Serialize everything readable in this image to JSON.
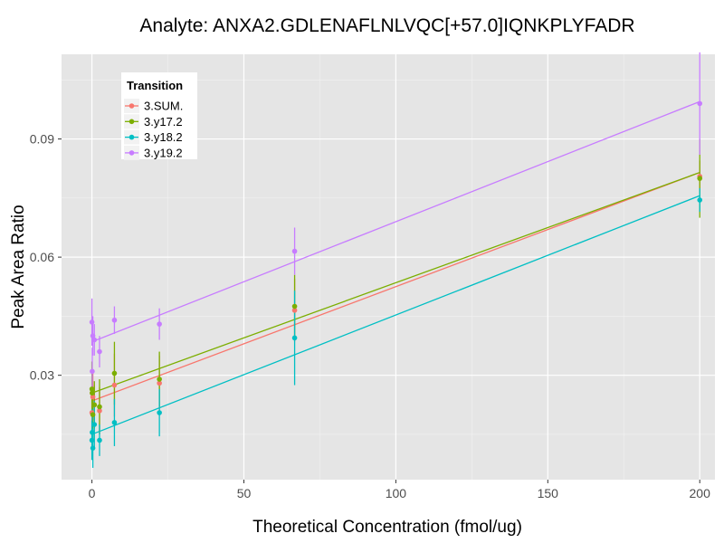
{
  "chart_data": {
    "type": "scatter",
    "title": "Analyte: ANXA2.GDLENAFLNLVQC[+57.0]IQNKPLYFADR",
    "xlabel": "Theoretical Concentration (fmol/ug)",
    "ylabel": "Peak Area Ratio",
    "xlim": [
      -10,
      205
    ],
    "ylim": [
      0.0035,
      0.1115
    ],
    "x_ticks": [
      0,
      50,
      100,
      150,
      200
    ],
    "x_tick_labels": [
      "0",
      "50",
      "100",
      "150",
      "200"
    ],
    "y_ticks": [
      0.03,
      0.06,
      0.09
    ],
    "y_tick_labels": [
      "0.03",
      "0.06",
      "0.09"
    ],
    "grid": true,
    "legend": {
      "title": "Transition",
      "position": "top-left"
    },
    "series": [
      {
        "name": "3.SUM.",
        "color": "#F8766D",
        "points": [
          {
            "x": 0,
            "y": 0.0205,
            "err": 0.006
          },
          {
            "x": 0.1,
            "y": 0.0255,
            "err": 0.005
          },
          {
            "x": 0.3,
            "y": 0.0245,
            "err": 0.006
          },
          {
            "x": 0.8,
            "y": 0.0225,
            "err": 0.005
          },
          {
            "x": 2.5,
            "y": 0.021,
            "err": 0.006
          },
          {
            "x": 7.4,
            "y": 0.0275,
            "err": 0.008
          },
          {
            "x": 22.2,
            "y": 0.028,
            "err": 0.007
          },
          {
            "x": 66.7,
            "y": 0.0465,
            "err": 0.008
          },
          {
            "x": 200,
            "y": 0.0805,
            "err": 0.004
          }
        ],
        "fit": {
          "intercept": 0.0235,
          "slope": 0.00029
        }
      },
      {
        "name": "3.y17.2",
        "color": "#7CAE00",
        "points": [
          {
            "x": 0,
            "y": 0.0265,
            "err": 0.007
          },
          {
            "x": 0.1,
            "y": 0.0255,
            "err": 0.006
          },
          {
            "x": 0.3,
            "y": 0.02,
            "err": 0.007
          },
          {
            "x": 0.8,
            "y": 0.0225,
            "err": 0.006
          },
          {
            "x": 2.5,
            "y": 0.022,
            "err": 0.007
          },
          {
            "x": 7.4,
            "y": 0.0305,
            "err": 0.008
          },
          {
            "x": 22.2,
            "y": 0.029,
            "err": 0.007
          },
          {
            "x": 66.7,
            "y": 0.0475,
            "err": 0.008
          },
          {
            "x": 200,
            "y": 0.08,
            "err": 0.01
          }
        ],
        "fit": {
          "intercept": 0.0255,
          "slope": 0.00028
        }
      },
      {
        "name": "3.y18.2",
        "color": "#00BFC4",
        "points": [
          {
            "x": 0,
            "y": 0.0135,
            "err": 0.005
          },
          {
            "x": 0.1,
            "y": 0.0155,
            "err": 0.006
          },
          {
            "x": 0.3,
            "y": 0.0115,
            "err": 0.005
          },
          {
            "x": 0.8,
            "y": 0.0175,
            "err": 0.006
          },
          {
            "x": 2.5,
            "y": 0.0135,
            "err": 0.004
          },
          {
            "x": 7.4,
            "y": 0.018,
            "err": 0.006
          },
          {
            "x": 22.2,
            "y": 0.0205,
            "err": 0.006
          },
          {
            "x": 66.7,
            "y": 0.0395,
            "err": 0.012
          },
          {
            "x": 200,
            "y": 0.0745,
            "err": 0.003
          }
        ],
        "fit": {
          "intercept": 0.015,
          "slope": 0.000303
        }
      },
      {
        "name": "3.y19.2",
        "color": "#C77CFF",
        "points": [
          {
            "x": 0,
            "y": 0.0435,
            "err": 0.006
          },
          {
            "x": 0.1,
            "y": 0.031,
            "err": 0.006
          },
          {
            "x": 0.3,
            "y": 0.04,
            "err": 0.005
          },
          {
            "x": 0.8,
            "y": 0.039,
            "err": 0.004
          },
          {
            "x": 2.5,
            "y": 0.036,
            "err": 0.004
          },
          {
            "x": 7.4,
            "y": 0.044,
            "err": 0.0035
          },
          {
            "x": 22.2,
            "y": 0.043,
            "err": 0.004
          },
          {
            "x": 66.7,
            "y": 0.0615,
            "err": 0.006
          },
          {
            "x": 200,
            "y": 0.099,
            "err": 0.013
          }
        ],
        "fit": {
          "intercept": 0.0385,
          "slope": 0.000305
        }
      }
    ]
  }
}
